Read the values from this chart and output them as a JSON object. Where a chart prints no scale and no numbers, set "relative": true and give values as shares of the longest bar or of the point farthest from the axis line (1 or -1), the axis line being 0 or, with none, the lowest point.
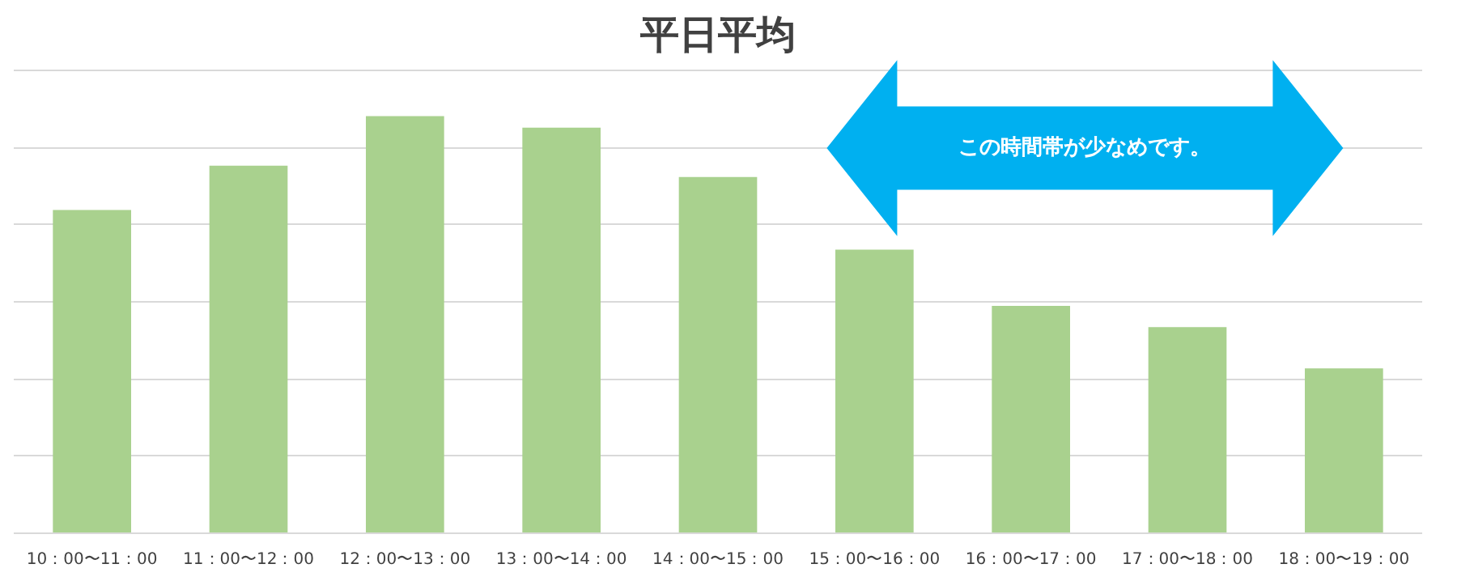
{
  "chart_data": {
    "type": "bar",
    "title": "平日平均",
    "relative": true,
    "grid": "y",
    "color": "#a9d18e",
    "categories": [
      "10：00〜11：00",
      "11：00〜12：00",
      "12：00〜13：00",
      "13：00〜14：00",
      "14：00〜15：00",
      "15：00〜16：00",
      "16：00〜17：00",
      "17：00〜18：00",
      "18：00〜19：00"
    ],
    "values": [
      0.775,
      0.881,
      1,
      0.972,
      0.854,
      0.68,
      0.545,
      0.494,
      0.395
    ],
    "annotations": [
      "この時間帯が少なめです。"
    ]
  }
}
